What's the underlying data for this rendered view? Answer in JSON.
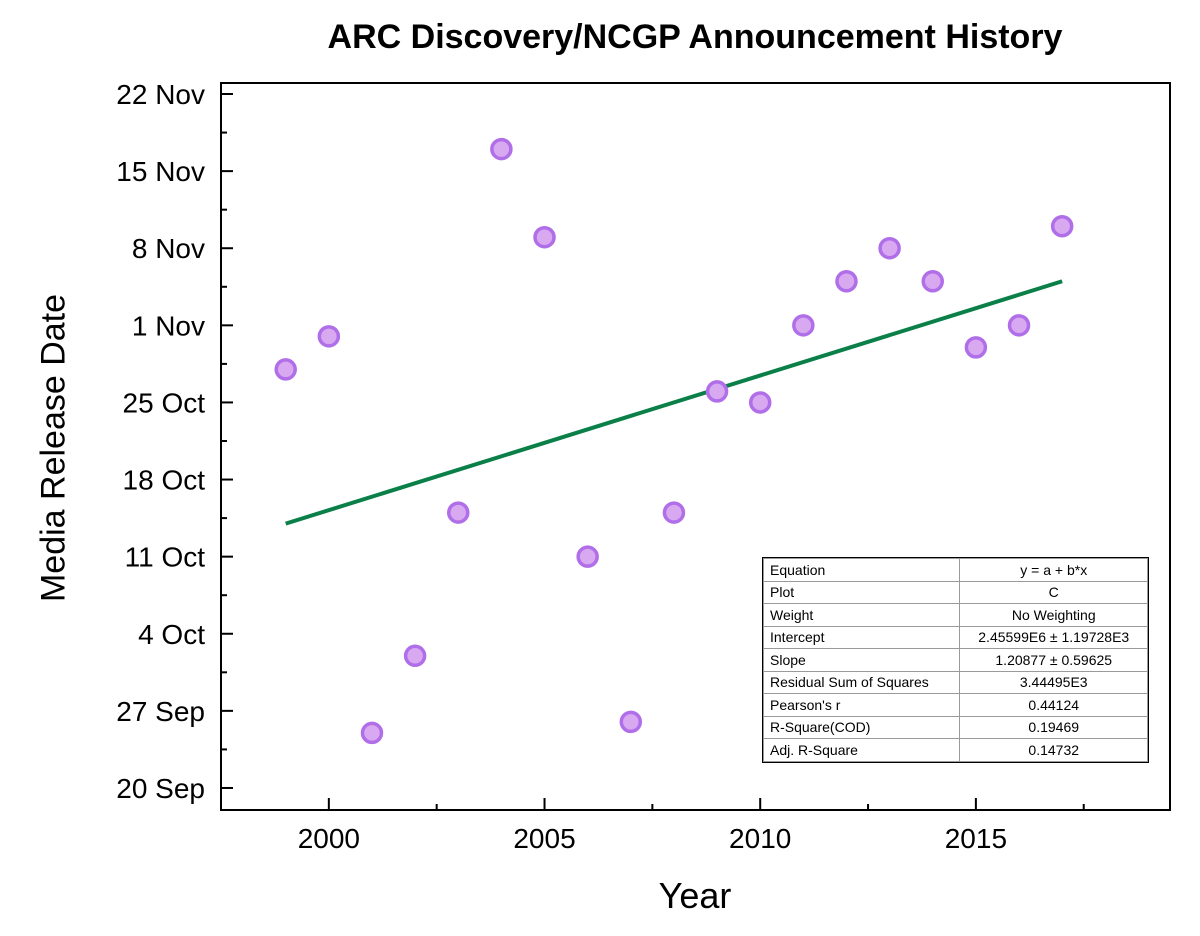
{
  "chart_data": {
    "type": "scatter",
    "title": "ARC Discovery/NCGP Announcement History",
    "xlabel": "Year",
    "ylabel": "Media Release Date",
    "xlim": [
      1997.5,
      2019.5
    ],
    "ylim": [
      "2015-09-18",
      "2015-11-23"
    ],
    "x_ticks": [
      "2000",
      "2005",
      "2010",
      "2015"
    ],
    "y_ticks": [
      "22 Nov",
      "15 Nov",
      "8 Nov",
      "1 Nov",
      "25 Oct",
      "18 Oct",
      "11 Oct",
      "4 Oct",
      "27 Sep",
      "20 Sep"
    ],
    "y_tick_dates": [
      "2015-11-22",
      "2015-11-15",
      "2015-11-08",
      "2015-11-01",
      "2015-10-25",
      "2015-10-18",
      "2015-10-11",
      "2015-10-04",
      "2015-09-27",
      "2015-09-20"
    ],
    "points": [
      {
        "x": 1999,
        "y": "2015-10-28"
      },
      {
        "x": 2000,
        "y": "2015-10-31"
      },
      {
        "x": 2001,
        "y": "2015-09-25"
      },
      {
        "x": 2002,
        "y": "2015-10-02"
      },
      {
        "x": 2003,
        "y": "2015-10-15"
      },
      {
        "x": 2004,
        "y": "2015-11-17"
      },
      {
        "x": 2005,
        "y": "2015-11-09"
      },
      {
        "x": 2006,
        "y": "2015-10-11"
      },
      {
        "x": 2007,
        "y": "2015-09-26"
      },
      {
        "x": 2008,
        "y": "2015-10-15"
      },
      {
        "x": 2009,
        "y": "2015-10-26"
      },
      {
        "x": 2010,
        "y": "2015-10-25"
      },
      {
        "x": 2011,
        "y": "2015-11-01"
      },
      {
        "x": 2012,
        "y": "2015-11-05"
      },
      {
        "x": 2013,
        "y": "2015-11-08"
      },
      {
        "x": 2014,
        "y": "2015-11-05"
      },
      {
        "x": 2015,
        "y": "2015-10-30"
      },
      {
        "x": 2016,
        "y": "2015-11-01"
      },
      {
        "x": 2017,
        "y": "2015-11-10"
      }
    ],
    "fit_line": {
      "x": [
        1999,
        2017
      ],
      "y": [
        "2015-10-14",
        "2015-11-05"
      ]
    },
    "colors": {
      "point_fill": "#d8a8f0",
      "point_edge": "#b06ee8",
      "fit_line": "#0a8048"
    },
    "grid": false,
    "legend": "none"
  },
  "stats_table": {
    "rows": [
      {
        "label": "Equation",
        "value": "y = a + b*x"
      },
      {
        "label": "Plot",
        "value": "C"
      },
      {
        "label": "Weight",
        "value": "No Weighting"
      },
      {
        "label": "Intercept",
        "value": "2.45599E6 ± 1.19728E3"
      },
      {
        "label": "Slope",
        "value": "1.20877 ± 0.59625"
      },
      {
        "label": "Residual Sum of Squares",
        "value": "3.44495E3"
      },
      {
        "label": "Pearson's r",
        "value": "0.44124"
      },
      {
        "label": "R-Square(COD)",
        "value": "0.19469"
      },
      {
        "label": "Adj. R-Square",
        "value": "0.14732"
      }
    ]
  }
}
